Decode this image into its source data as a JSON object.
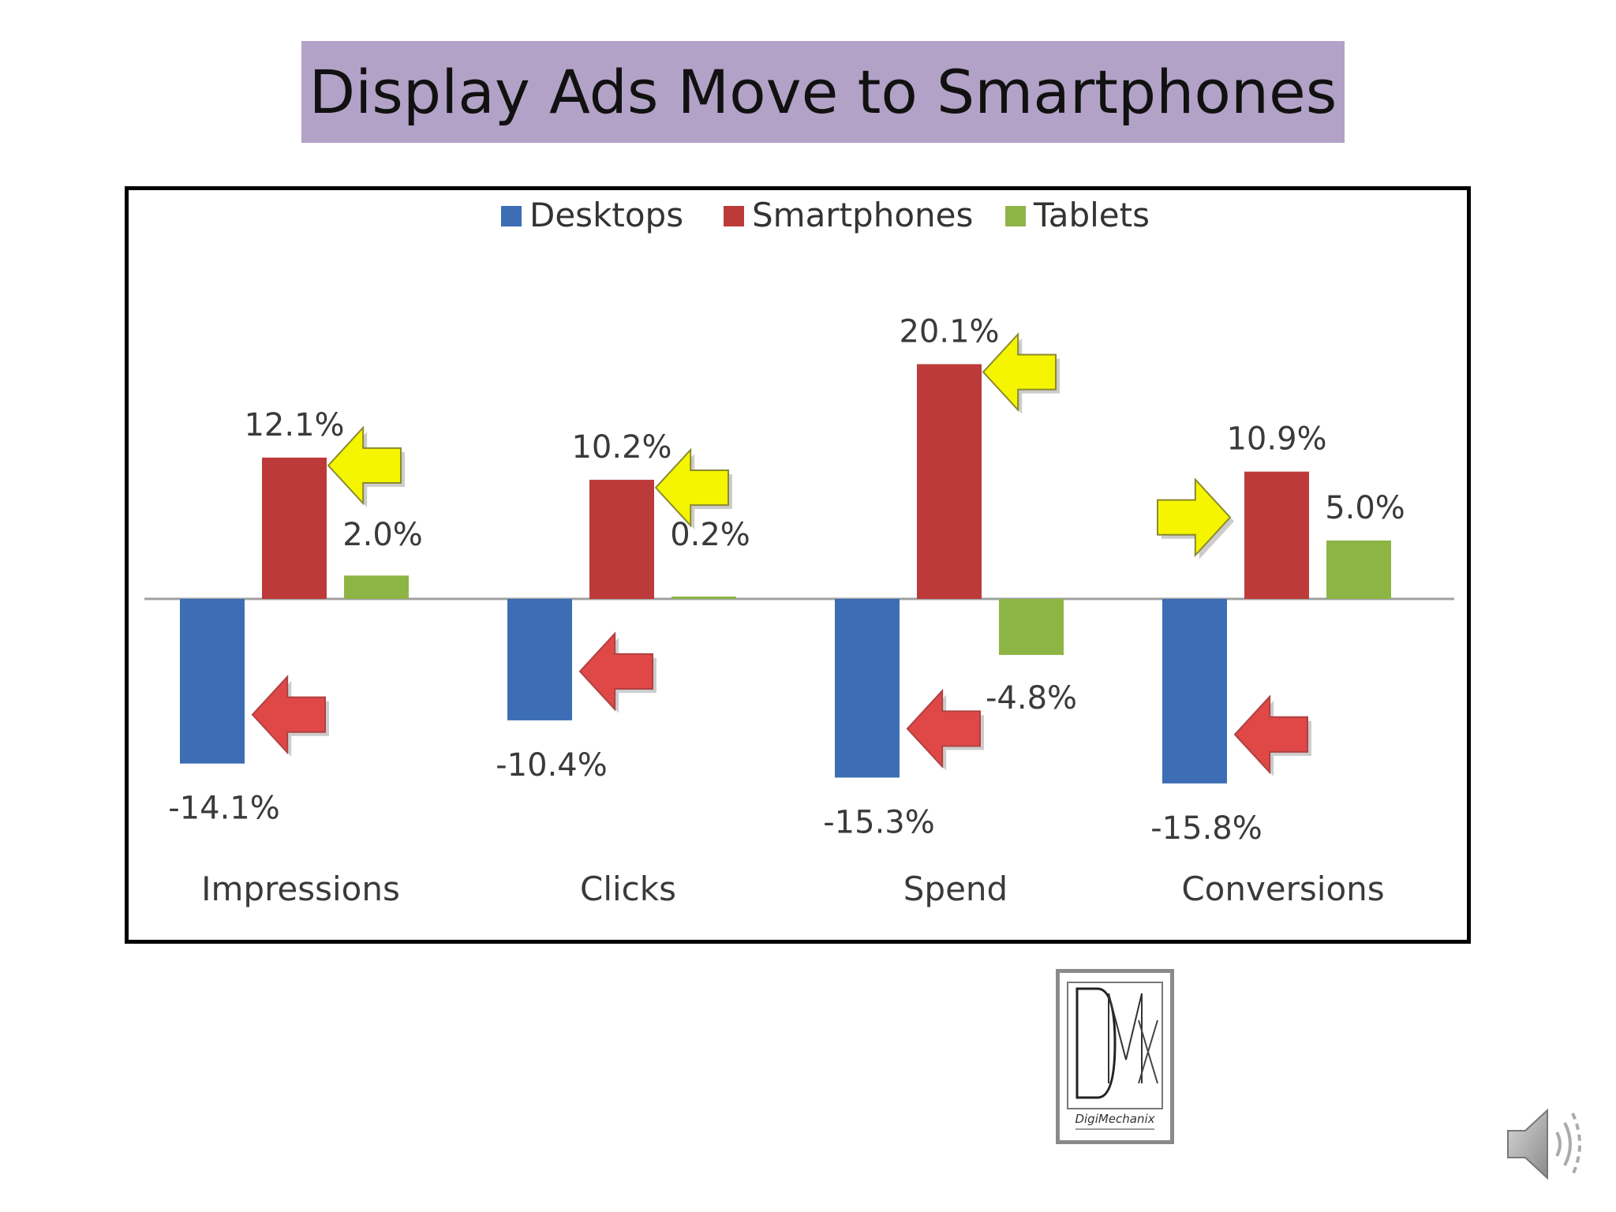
{
  "slide": {
    "title": "Display Ads Move to Smartphones"
  },
  "chart_data": {
    "type": "bar",
    "categories": [
      "Impressions",
      "Clicks",
      "Spend",
      "Conversions"
    ],
    "series": [
      {
        "name": "Desktops",
        "values": [
          -14.1,
          -10.4,
          -15.3,
          -15.8
        ],
        "labels": [
          "-14.1%",
          "-10.4%",
          "-15.3%",
          "-15.8%"
        ],
        "color": "#3c6db5"
      },
      {
        "name": "Smartphones",
        "values": [
          12.1,
          10.2,
          20.1,
          10.9
        ],
        "labels": [
          "12.1%",
          "10.2%",
          "20.1%",
          "10.9%"
        ],
        "color": "#bd3a3a"
      },
      {
        "name": "Tablets",
        "values": [
          2.0,
          0.2,
          -4.8,
          5.0
        ],
        "labels": [
          "2.0%",
          "0.2%",
          "-4.8%",
          "5.0%"
        ],
        "color": "#8cb545"
      }
    ],
    "ylim": [
      -22,
      26
    ],
    "grid": false,
    "legend": "top-center",
    "annotations": {
      "yellow_arrow_color": "#f5f500",
      "red_arrow_color": "#e04848"
    }
  },
  "logo": {
    "name": "DigiMechanix",
    "icon": "dmx-logo-icon"
  },
  "speaker": {
    "icon": "speaker-icon"
  }
}
